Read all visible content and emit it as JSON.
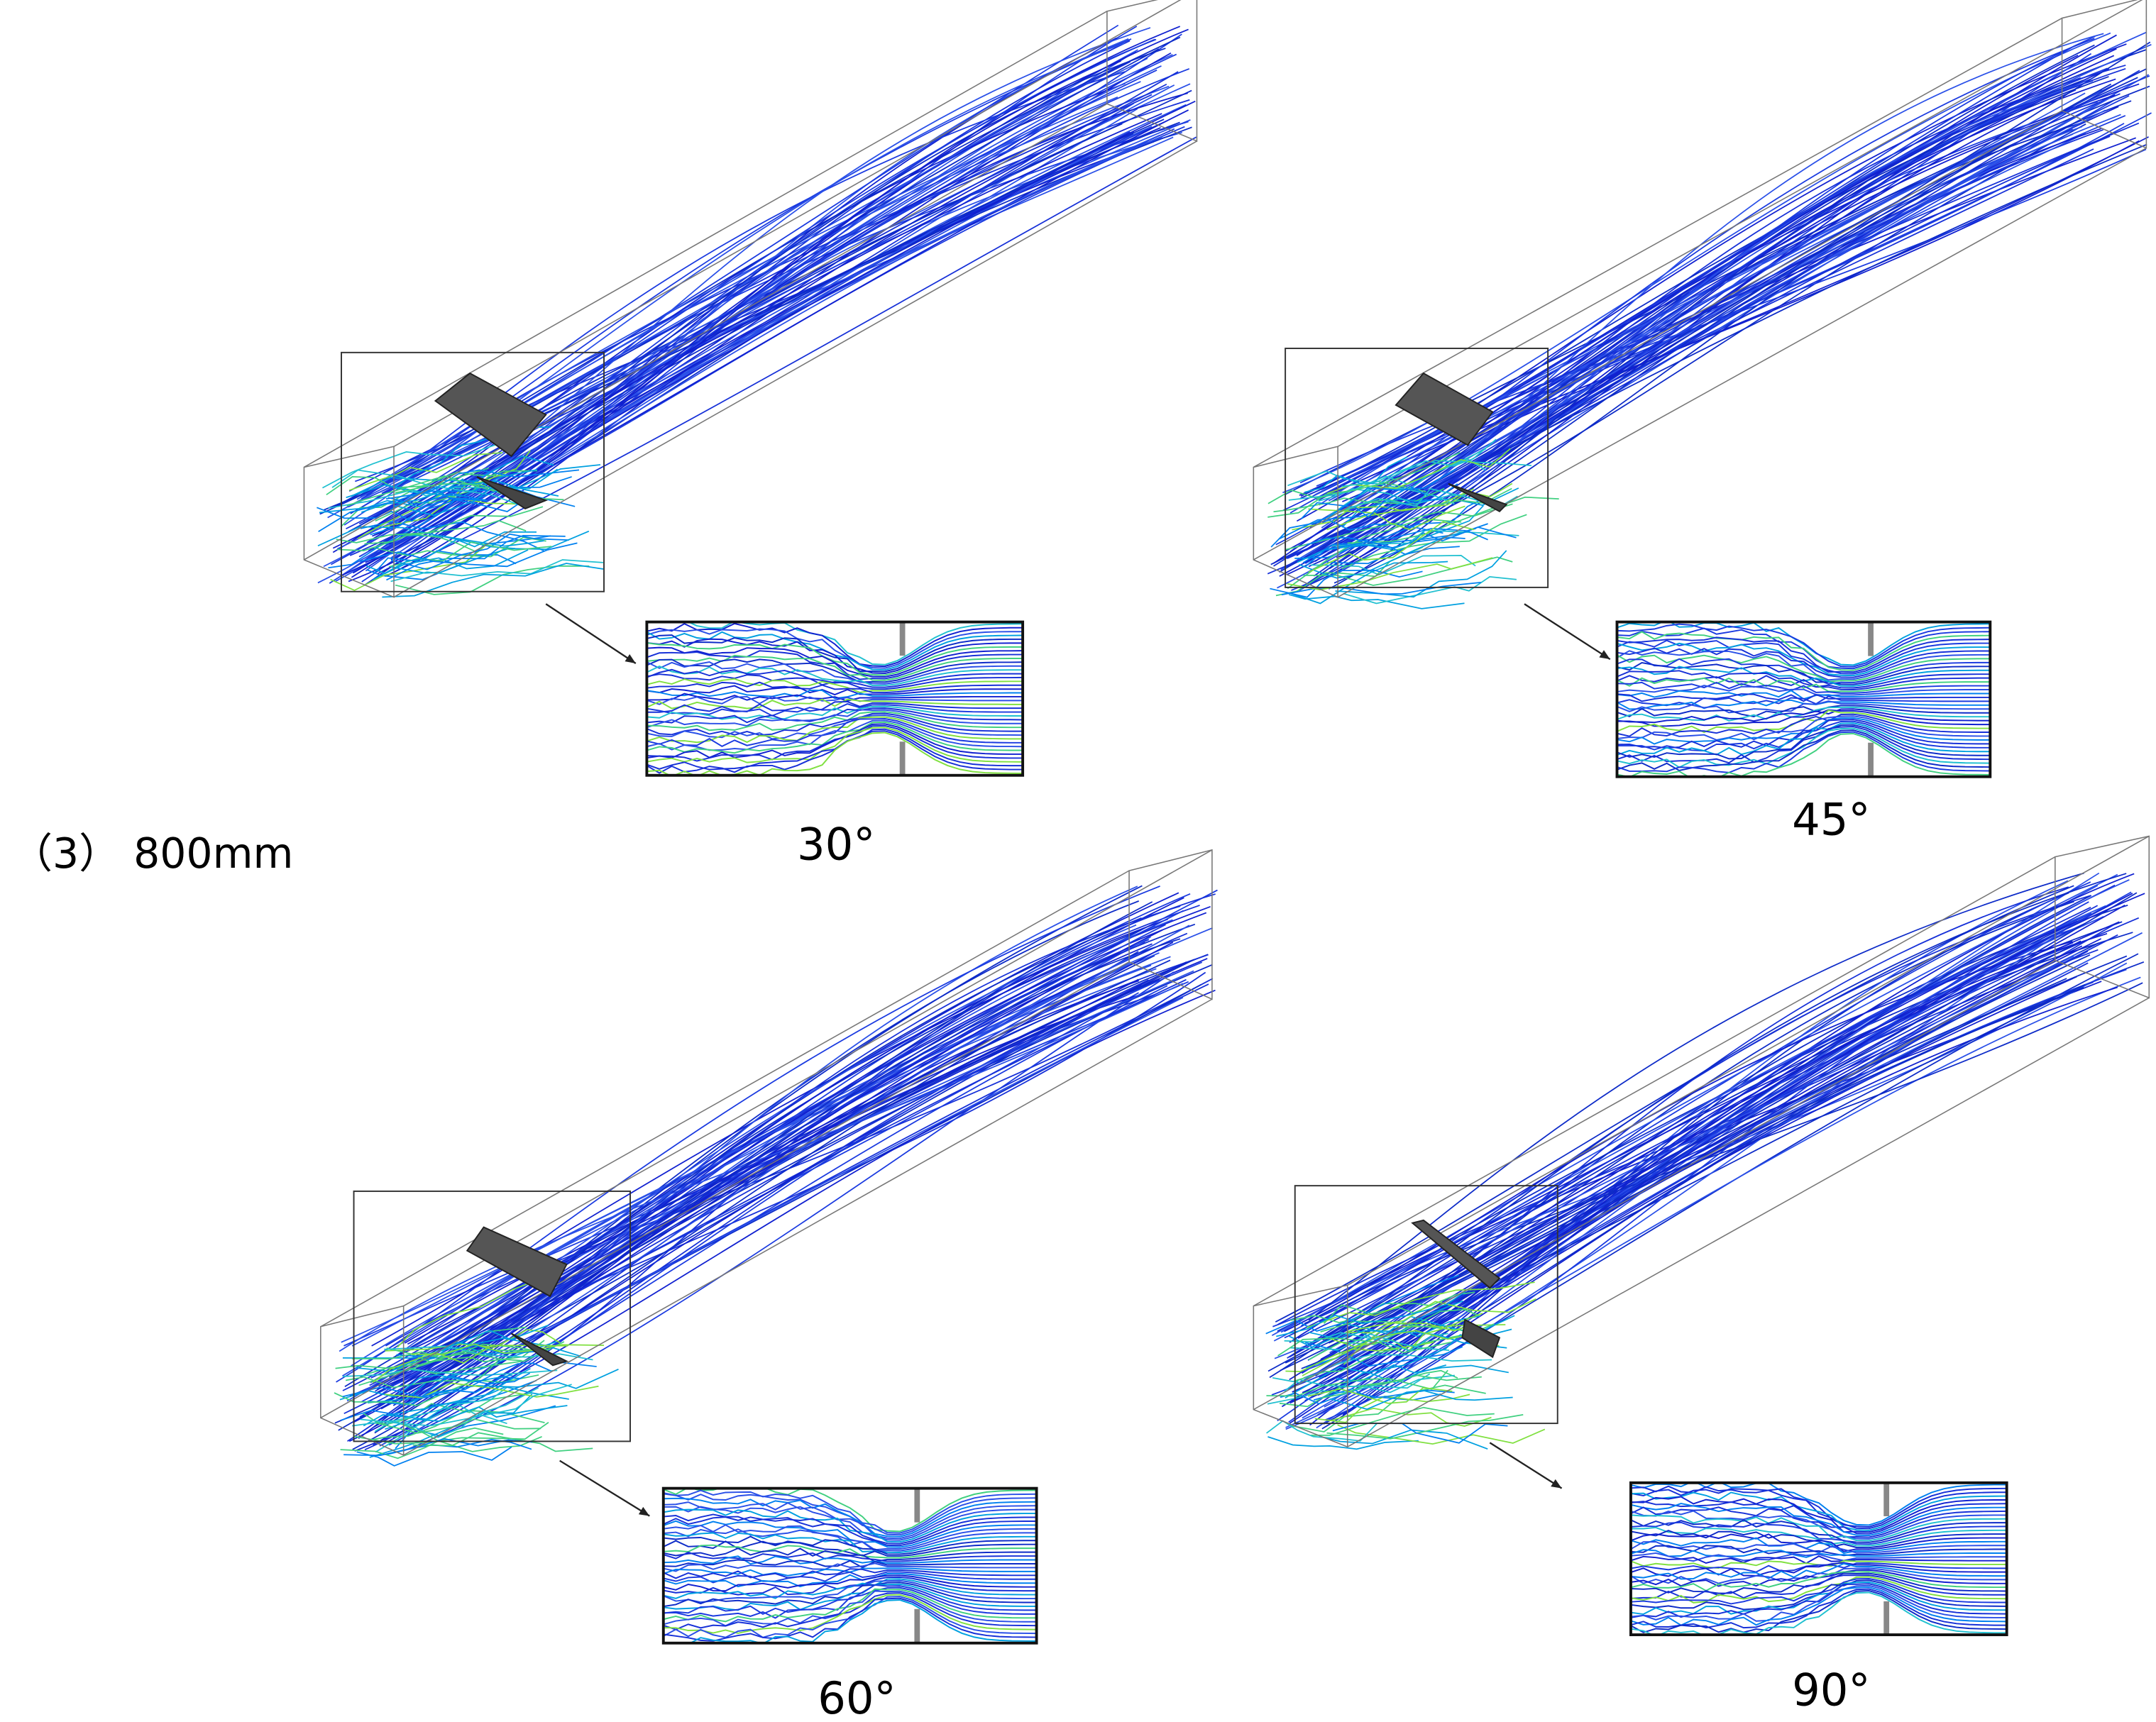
{
  "figure_label": "（3） 800mm",
  "panels": [
    {
      "caption": "30°"
    },
    {
      "caption": "45°"
    },
    {
      "caption": "60°"
    },
    {
      "caption": "90°"
    }
  ]
}
